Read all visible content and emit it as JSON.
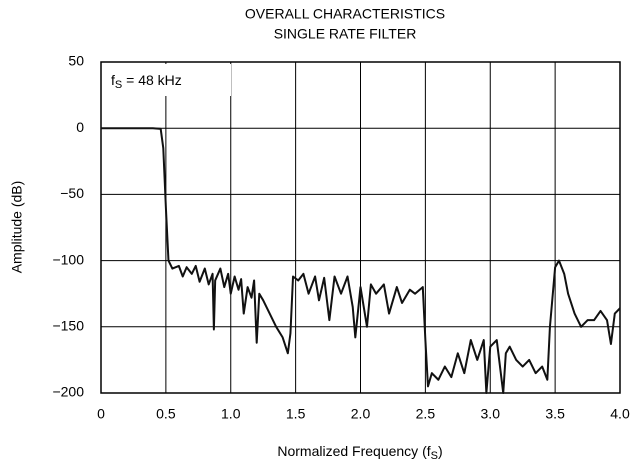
{
  "chart_data": {
    "type": "line",
    "title": [
      "OVERALL CHARACTERISTICS",
      "SINGLE RATE FILTER"
    ],
    "annotation": {
      "main": "f",
      "sub": "S",
      "rest": " = 48 kHz"
    },
    "x_label": {
      "main": "Normalized Frequency (f",
      "sub": "S",
      "rest": ")"
    },
    "y_label": "Amplitude (dB)",
    "color": "#111111",
    "grid": true,
    "xlim": [
      0,
      4
    ],
    "ylim": [
      -200,
      50
    ],
    "xticks": [
      0,
      0.5,
      {
        "value": 1,
        "label": "1.0"
      },
      1.5,
      {
        "value": 2,
        "label": "2.0"
      },
      2.5,
      {
        "value": 3,
        "label": "3.0"
      },
      3.5,
      {
        "value": 4,
        "label": "4.0"
      }
    ],
    "yticks": [
      50,
      0,
      {
        "value": -50,
        "label": "−50"
      },
      {
        "value": -100,
        "label": "−100"
      },
      {
        "value": -150,
        "label": "−150"
      },
      {
        "value": -200,
        "label": "−200"
      }
    ],
    "x": [
      0,
      0.1,
      0.2,
      0.3,
      0.4,
      0.46,
      0.48,
      0.5,
      0.52,
      0.55,
      0.6,
      0.63,
      0.66,
      0.7,
      0.73,
      0.76,
      0.8,
      0.83,
      0.86,
      0.87,
      0.88,
      0.92,
      0.95,
      0.98,
      1.0,
      1.03,
      1.06,
      1.08,
      1.1,
      1.13,
      1.16,
      1.18,
      1.2,
      1.22,
      1.25,
      1.3,
      1.35,
      1.4,
      1.44,
      1.46,
      1.48,
      1.52,
      1.56,
      1.6,
      1.65,
      1.68,
      1.72,
      1.76,
      1.8,
      1.85,
      1.9,
      1.94,
      1.96,
      2.0,
      2.05,
      2.08,
      2.12,
      2.18,
      2.22,
      2.28,
      2.32,
      2.38,
      2.42,
      2.48,
      2.5,
      2.52,
      2.55,
      2.6,
      2.65,
      2.7,
      2.75,
      2.8,
      2.85,
      2.9,
      2.95,
      2.97,
      3.0,
      3.05,
      3.1,
      3.12,
      3.15,
      3.2,
      3.25,
      3.3,
      3.35,
      3.4,
      3.44,
      3.46,
      3.5,
      3.53,
      3.57,
      3.6,
      3.65,
      3.7,
      3.75,
      3.8,
      3.85,
      3.9,
      3.93,
      3.96,
      4.0
    ],
    "values": [
      0,
      0,
      0,
      0,
      0,
      -0.5,
      -15,
      -60,
      -100,
      -106,
      -104,
      -112,
      -105,
      -110,
      -104,
      -116,
      -106,
      -118,
      -110,
      -152,
      -115,
      -106,
      -120,
      -110,
      -125,
      -112,
      -122,
      -114,
      -140,
      -120,
      -128,
      -115,
      -162,
      -125,
      -130,
      -140,
      -150,
      -158,
      -170,
      -155,
      -112,
      -115,
      -110,
      -125,
      -112,
      -130,
      -113,
      -145,
      -112,
      -125,
      -112,
      -135,
      -158,
      -120,
      -150,
      -118,
      -125,
      -118,
      -140,
      -120,
      -132,
      -122,
      -125,
      -120,
      -160,
      -195,
      -185,
      -190,
      -180,
      -188,
      -170,
      -185,
      -160,
      -175,
      -160,
      -200,
      -165,
      -160,
      -200,
      -170,
      -165,
      -175,
      -180,
      -175,
      -185,
      -180,
      -190,
      -150,
      -105,
      -100,
      -110,
      -125,
      -140,
      -150,
      -145,
      -145,
      -138,
      -145,
      -163,
      -140,
      -136
    ]
  }
}
